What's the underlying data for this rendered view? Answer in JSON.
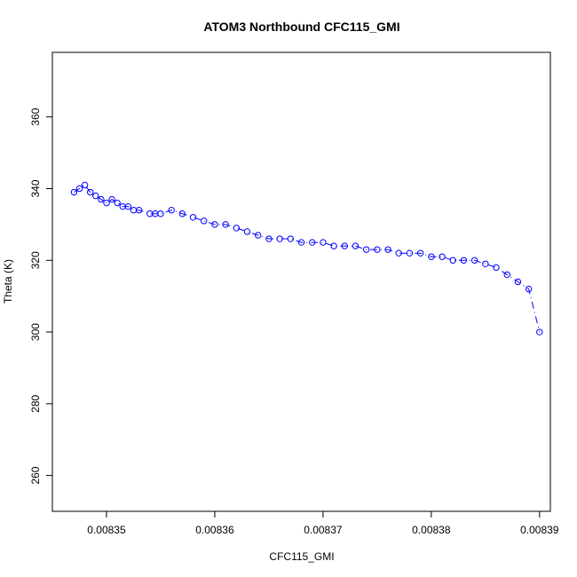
{
  "chart_data": {
    "type": "scatter",
    "title": "ATOM3 Northbound CFC115_GMI",
    "xlabel": "CFC115_GMI",
    "ylabel": "Theta (K)",
    "xlim": [
      0.008345,
      0.008391
    ],
    "ylim": [
      250,
      378
    ],
    "x_ticks": [
      0.00835,
      0.00836,
      0.00837,
      0.00838,
      0.00839
    ],
    "x_tick_labels": [
      "0.00835",
      "0.00836",
      "0.00837",
      "0.00838",
      "0.00839"
    ],
    "y_ticks": [
      260,
      280,
      300,
      320,
      340,
      360
    ],
    "y_tick_labels": [
      "260",
      "280",
      "300",
      "320",
      "340",
      "360"
    ],
    "grid": false,
    "marker": "open-circle",
    "line_style": "dash-dot",
    "colors": {
      "series": "#0000ff",
      "axes": "#000000",
      "background": "#ffffff"
    },
    "series": [
      {
        "x": [
          0.008347,
          0.0083475,
          0.008348,
          0.0083485,
          0.008349,
          0.0083495,
          0.00835,
          0.0083505,
          0.008351,
          0.0083515,
          0.008352,
          0.0083525,
          0.008353,
          0.008354,
          0.0083545,
          0.008355,
          0.008356,
          0.008357,
          0.008358,
          0.008359,
          0.00836,
          0.008361,
          0.008362,
          0.008363,
          0.008364,
          0.008365,
          0.008366,
          0.008367,
          0.008368,
          0.008369,
          0.00837,
          0.008371,
          0.008372,
          0.008373,
          0.008374,
          0.008375,
          0.008376,
          0.008377,
          0.008378,
          0.008379,
          0.00838,
          0.008381,
          0.008382,
          0.008383,
          0.008384,
          0.008385,
          0.008386,
          0.008387,
          0.008388,
          0.008389,
          0.00839
        ],
        "y": [
          339,
          340,
          341,
          339,
          338,
          337,
          336,
          337,
          336,
          335,
          335,
          334,
          334,
          333,
          333,
          333,
          334,
          333,
          332,
          331,
          330,
          330,
          329,
          328,
          327,
          326,
          326,
          326,
          325,
          325,
          325,
          324,
          324,
          324,
          323,
          323,
          323,
          322,
          322,
          322,
          321,
          321,
          320,
          320,
          320,
          319,
          318,
          316,
          314,
          312,
          300
        ]
      }
    ]
  }
}
